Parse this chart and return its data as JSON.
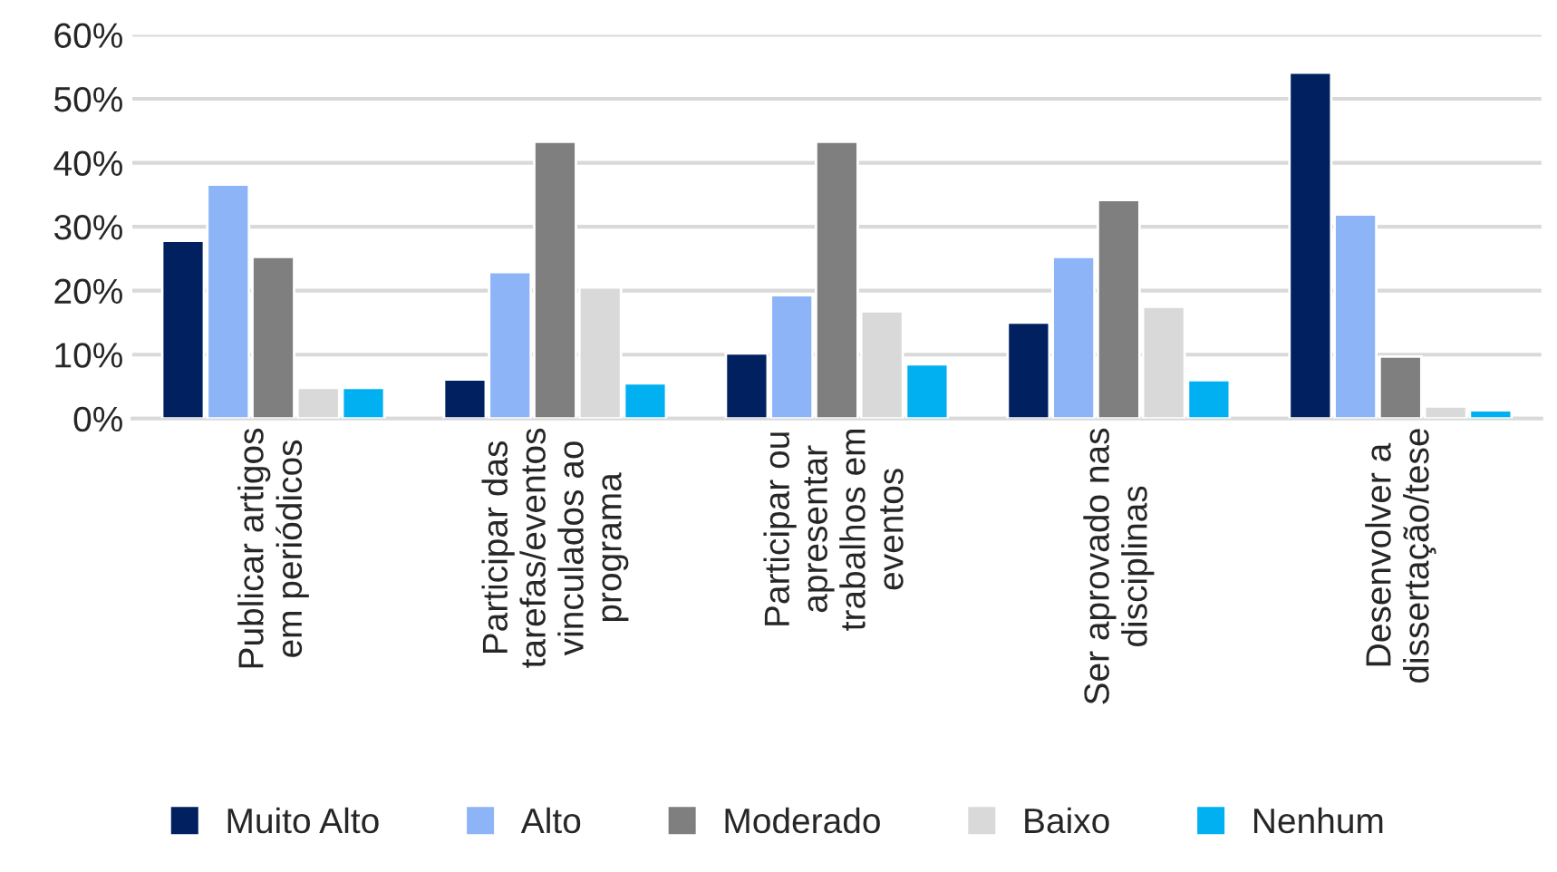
{
  "chart_data": {
    "type": "bar",
    "categories": [
      "Publicar artigos\nem periódicos",
      "Participar das\ntarefas/eventos\nvinculados ao\nprograma",
      "Participar ou\napresentar\ntrabalhos em\neventos",
      "Ser aprovado nas\ndisciplinas",
      "Desenvolver a\ndissertação/tese"
    ],
    "series": [
      {
        "name": "Muito Alto",
        "color": "#002060",
        "values": [
          27.8,
          6.1,
          10.2,
          15.0,
          54.1
        ]
      },
      {
        "name": "Alto",
        "color": "#8eb4f8",
        "values": [
          36.6,
          22.9,
          19.3,
          25.3,
          31.9
        ]
      },
      {
        "name": "Moderado",
        "color": "#7f7f7f",
        "values": [
          25.3,
          43.3,
          43.3,
          34.2,
          9.7
        ]
      },
      {
        "name": "Baixo",
        "color": "#d9d9d9",
        "values": [
          4.8,
          20.5,
          16.8,
          17.5,
          1.9
        ]
      },
      {
        "name": "Nenhum",
        "color": "#00b0f0",
        "values": [
          4.8,
          5.5,
          8.5,
          6.0,
          1.3
        ]
      }
    ],
    "ylim": [
      0,
      60
    ],
    "yticks": [
      {
        "value": 0,
        "label": "0%"
      },
      {
        "value": 10,
        "label": "10%"
      },
      {
        "value": 20,
        "label": "20%"
      },
      {
        "value": 30,
        "label": "30%"
      },
      {
        "value": 40,
        "label": "40%"
      },
      {
        "value": 50,
        "label": "50%"
      },
      {
        "value": 60,
        "label": "60%"
      }
    ],
    "grid": "y",
    "legend": "bottom"
  }
}
